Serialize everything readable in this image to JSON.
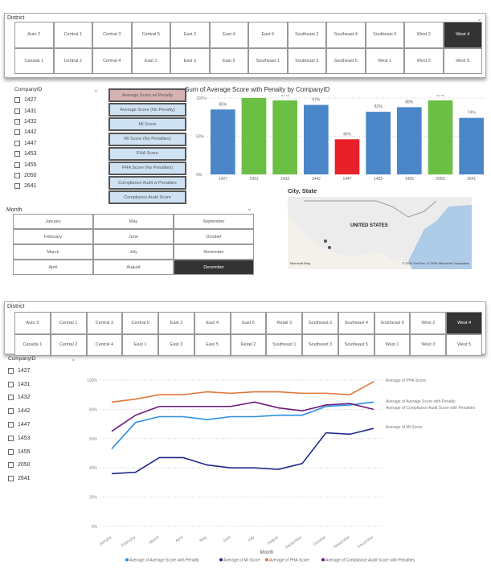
{
  "top": {
    "district_label": "District",
    "districts_row1": [
      "Auto 2",
      "Central 1",
      "Central 3",
      "Central 5",
      "East 2",
      "East 4",
      "East 6",
      "Southeast 2",
      "Southeast 4",
      "Southeast 6",
      "West 2",
      "West 4"
    ],
    "districts_row2": [
      "Canada 1",
      "Central 2",
      "Central 4",
      "East 1",
      "East 3",
      "East 5",
      "Southeast 1",
      "Southeast 3",
      "Southeast 5",
      "West 1",
      "West 3",
      "West 5"
    ],
    "selected_district": "West 4",
    "company_label": "CompanyID",
    "companies": [
      "1427",
      "1431",
      "1432",
      "1442",
      "1447",
      "1453",
      "1455",
      "2050",
      "2641"
    ],
    "measure_buttons": [
      "Average Score w/ Penalty",
      "Average Score (No Penalty)",
      "MI Score",
      "MI Score (No Penalties)",
      "PHA Score",
      "PHA Score (No Penalties)",
      "Compliance Audit w Penalties",
      "Compliance Audit Score"
    ],
    "month_label": "Month",
    "months": [
      "January",
      "May",
      "September",
      "February",
      "June",
      "October",
      "March",
      "July",
      "November",
      "April",
      "August",
      "December"
    ],
    "selected_month": "December",
    "map": {
      "title": "City, State",
      "country_label": "UNITED STATES",
      "brand": "Microsoft Bing",
      "credit": "© 2024 TomTom, © 2024 Microsoft Corporation"
    }
  },
  "bottom": {
    "district_label": "District",
    "districts_row1": [
      "Auto 2",
      "Central 1",
      "Central 3",
      "Central 5",
      "East 2",
      "East 4",
      "East 6",
      "Retail 3",
      "Southeast 2",
      "Southeast 4",
      "Southeast 6",
      "West 2",
      "West 4"
    ],
    "districts_row2": [
      "Canada 1",
      "Central 2",
      "Central 4",
      "East 1",
      "East 3",
      "East 5",
      "Retail 2",
      "Southeast 1",
      "Southeast 3",
      "Southeast 5",
      "West 1",
      "West 3",
      "West 5"
    ],
    "selected_district": "West 4",
    "company_label": "CompanyID",
    "companies": [
      "1427",
      "1431",
      "1432",
      "1442",
      "1447",
      "1453",
      "1455",
      "2050",
      "2641"
    ]
  },
  "chart_data": [
    {
      "type": "bar",
      "title": "Sum of Average Score with Penalty by CompanyID",
      "categories": [
        "1427",
        "1431",
        "1432",
        "1442",
        "1447",
        "1453",
        "1455",
        "2050",
        "2641"
      ],
      "values": [
        85,
        100,
        97,
        91,
        46,
        82,
        88,
        97,
        74
      ],
      "value_labels": [
        "85%",
        "100%",
        "97%",
        "91%",
        "46%",
        "82%",
        "88%",
        "97%",
        "74%"
      ],
      "colors": [
        "#4a86c8",
        "#6cbf45",
        "#6cbf45",
        "#4a86c8",
        "#e8202a",
        "#4a86c8",
        "#4a86c8",
        "#6cbf45",
        "#4a86c8"
      ],
      "yticks": [
        "0%",
        "50%",
        "100%"
      ],
      "ylim": [
        0,
        100
      ]
    },
    {
      "type": "line",
      "xlabel": "Month",
      "categories": [
        "January",
        "February",
        "March",
        "April",
        "May",
        "June",
        "July",
        "August",
        "September",
        "October",
        "November",
        "December"
      ],
      "yticks": [
        "0%",
        "20%",
        "40%",
        "60%",
        "80%",
        "100%"
      ],
      "ylim": [
        0,
        100
      ],
      "series": [
        {
          "name": "Average of Average Score with Penalty",
          "color": "#2a8fe0",
          "values": [
            53,
            71,
            75,
            75,
            73,
            75,
            75,
            76,
            76,
            82,
            83,
            85
          ]
        },
        {
          "name": "Average of MI Score",
          "color": "#1f2a8a",
          "values": [
            36,
            37,
            47,
            47,
            42,
            40,
            40,
            39,
            43,
            64,
            63,
            67
          ]
        },
        {
          "name": "Average of PHA Score",
          "color": "#e0773a",
          "values": [
            85,
            87,
            90,
            90,
            92,
            91,
            92,
            92,
            91,
            91,
            90,
            99
          ]
        },
        {
          "name": "Average of Compliance Audit Score with Penalties",
          "color": "#6a1a7a",
          "values": [
            65,
            76,
            82,
            82,
            82,
            82,
            85,
            81,
            79,
            83,
            84,
            80
          ]
        }
      ]
    }
  ]
}
